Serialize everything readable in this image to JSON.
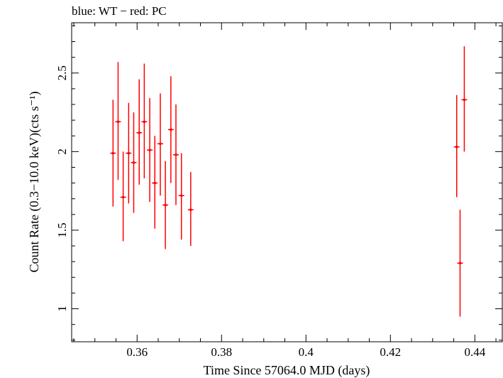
{
  "chart_data": {
    "type": "scatter",
    "title": "blue: WT − red: PC",
    "xlabel": "Time Since 57064.0 MJD (days)",
    "ylabel": "Count Rate (0.3−10.0 keV)(cts s⁻¹)",
    "xlim": [
      0.3445,
      0.4465
    ],
    "ylim": [
      0.79,
      2.82
    ],
    "x_major_ticks": [
      0.36,
      0.38,
      0.4,
      0.42,
      0.44
    ],
    "x_tick_labels": [
      "0.36",
      "0.38",
      "0.4",
      "0.42",
      "0.44"
    ],
    "y_major_ticks": [
      1.0,
      1.5,
      2.0,
      2.5
    ],
    "y_tick_labels": [
      "1",
      "1.5",
      "2",
      "2.5"
    ],
    "grid": false,
    "series": [
      {
        "name": "PC",
        "color": "#ff0000",
        "points": [
          {
            "x": 0.3543,
            "y": 1.99,
            "ylo": 1.65,
            "yhi": 2.33
          },
          {
            "x": 0.3555,
            "y": 2.19,
            "ylo": 1.82,
            "yhi": 2.57
          },
          {
            "x": 0.3567,
            "y": 1.71,
            "ylo": 1.43,
            "yhi": 2.0
          },
          {
            "x": 0.358,
            "y": 1.99,
            "ylo": 1.67,
            "yhi": 2.31
          },
          {
            "x": 0.3592,
            "y": 1.93,
            "ylo": 1.61,
            "yhi": 2.25
          },
          {
            "x": 0.3605,
            "y": 2.12,
            "ylo": 1.79,
            "yhi": 2.46
          },
          {
            "x": 0.3617,
            "y": 2.19,
            "ylo": 1.83,
            "yhi": 2.56
          },
          {
            "x": 0.363,
            "y": 2.01,
            "ylo": 1.68,
            "yhi": 2.34
          },
          {
            "x": 0.3642,
            "y": 1.8,
            "ylo": 1.51,
            "yhi": 2.1
          },
          {
            "x": 0.3655,
            "y": 2.05,
            "ylo": 1.72,
            "yhi": 2.37
          },
          {
            "x": 0.3667,
            "y": 1.66,
            "ylo": 1.38,
            "yhi": 1.94
          },
          {
            "x": 0.368,
            "y": 2.14,
            "ylo": 1.8,
            "yhi": 2.48
          },
          {
            "x": 0.3692,
            "y": 1.98,
            "ylo": 1.66,
            "yhi": 2.3
          },
          {
            "x": 0.3705,
            "y": 1.72,
            "ylo": 1.44,
            "yhi": 1.99
          },
          {
            "x": 0.3727,
            "y": 1.63,
            "ylo": 1.4,
            "yhi": 1.87
          },
          {
            "x": 0.4357,
            "y": 2.03,
            "ylo": 1.71,
            "yhi": 2.36
          },
          {
            "x": 0.4365,
            "y": 1.29,
            "ylo": 0.95,
            "yhi": 1.63
          },
          {
            "x": 0.4375,
            "y": 2.33,
            "ylo": 2.0,
            "yhi": 2.67
          }
        ]
      }
    ]
  }
}
